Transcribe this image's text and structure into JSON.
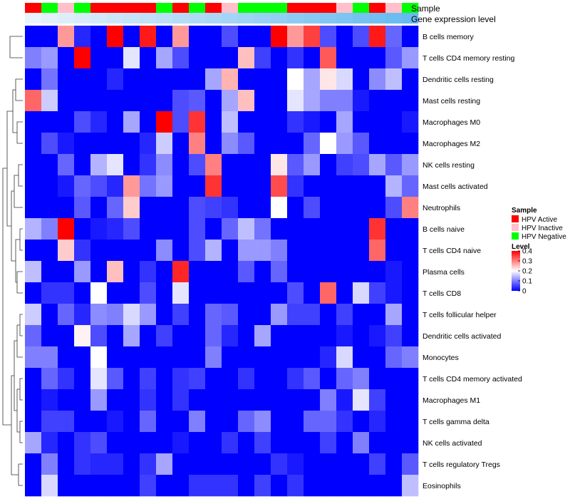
{
  "chart_data": {
    "type": "heatmap",
    "title": "",
    "annotation_labels": {
      "sample": "Sample",
      "gene": "Gene expression level"
    },
    "sample_annotation": [
      "HPV Active",
      "HPV Negative",
      "HPV Inactive",
      "HPV Negative",
      "HPV Active",
      "HPV Active",
      "HPV Active",
      "HPV Active",
      "HPV Negative",
      "HPV Active",
      "HPV Negative",
      "HPV Active",
      "HPV Inactive",
      "HPV Negative",
      "HPV Negative",
      "HPV Negative",
      "HPV Active",
      "HPV Active",
      "HPV Active",
      "HPV Inactive",
      "HPV Negative",
      "HPV Active",
      "HPV Inactive",
      "HPV Negative"
    ],
    "gene_expression_level": [
      0.02,
      0.06,
      0.1,
      0.14,
      0.18,
      0.22,
      0.26,
      0.3,
      0.34,
      0.38,
      0.42,
      0.46,
      0.5,
      0.54,
      0.58,
      0.62,
      0.66,
      0.7,
      0.74,
      0.78,
      0.82,
      0.86,
      0.9,
      0.94
    ],
    "rows": [
      "B cells memory",
      "T cells CD4 memory resting",
      "Dendritic cells resting",
      "Mast cells resting",
      "Macrophages M0",
      "Macrophages M2",
      "NK cells resting",
      "Mast cells activated",
      "Neutrophils",
      "B cells naive",
      "T cells CD4 naive",
      "Plasma cells",
      "T cells CD8",
      "T cells follicular helper",
      "Dendritic cells activated",
      "Monocytes",
      "T cells CD4 memory activated",
      "Macrophages M1",
      "T cells gamma delta",
      "NK cells activated",
      "T cells regulatory  Tregs",
      "Eosinophils"
    ],
    "values": [
      [
        0,
        0,
        0.28,
        0.03,
        0,
        0.4,
        0,
        0.38,
        0,
        0.28,
        0,
        0,
        0.06,
        0,
        0,
        0.4,
        0.28,
        0.35,
        0.06,
        0,
        0.06,
        0.38,
        0.08,
        0
      ],
      [
        0.1,
        0.12,
        0,
        0.4,
        0,
        0,
        0.18,
        0,
        0.13,
        0.06,
        0,
        0,
        0,
        0.25,
        0.05,
        0,
        0.04,
        0,
        0.33,
        0,
        0,
        0,
        0.07,
        0.12
      ],
      [
        0,
        0.09,
        0,
        0,
        0,
        0.03,
        0,
        0,
        0,
        0,
        0,
        0.13,
        0.26,
        0,
        0,
        0,
        0.2,
        0.13,
        0.22,
        0.17,
        0,
        0.11,
        0.15,
        0
      ],
      [
        0.32,
        0.16,
        0,
        0,
        0,
        0,
        0,
        0,
        0,
        0.06,
        0.07,
        0,
        0.13,
        0.25,
        0,
        0,
        0.18,
        0.13,
        0.1,
        0.1,
        0.02,
        0,
        0,
        0
      ],
      [
        0,
        0,
        0,
        0.06,
        0.03,
        0,
        0.13,
        0,
        0.4,
        0.06,
        0.36,
        0,
        0.15,
        0,
        0,
        0,
        0.04,
        0.02,
        0,
        0.13,
        0,
        0,
        0,
        0.02
      ],
      [
        0,
        0.06,
        0.02,
        0,
        0,
        0,
        0,
        0.03,
        0.16,
        0,
        0.3,
        0,
        0.11,
        0.07,
        0,
        0,
        0,
        0.08,
        0.2,
        0.12,
        0.07,
        0,
        0,
        0
      ],
      [
        0,
        0,
        0.08,
        0,
        0.14,
        0.18,
        0,
        0.04,
        0.11,
        0,
        0.06,
        0.3,
        0,
        0,
        0,
        0.22,
        0.07,
        0.12,
        0,
        0.05,
        0.06,
        0.13,
        0.07,
        0.12
      ],
      [
        0,
        0,
        0.02,
        0.08,
        0.06,
        0.03,
        0.28,
        0.09,
        0.12,
        0,
        0,
        0.36,
        0,
        0,
        0,
        0.34,
        0.04,
        0,
        0,
        0,
        0,
        0,
        0.14,
        0.08
      ],
      [
        0,
        0,
        0,
        0.07,
        0,
        0.08,
        0.24,
        0,
        0,
        0,
        0.06,
        0.05,
        0.04,
        0,
        0,
        0.2,
        0,
        0.06,
        0,
        0,
        0,
        0,
        0.06,
        0.3
      ],
      [
        0.14,
        0.1,
        0.4,
        0,
        0.02,
        0.03,
        0.06,
        0,
        0,
        0,
        0.06,
        0,
        0.08,
        0.15,
        0.09,
        0,
        0,
        0,
        0,
        0,
        0,
        0.36,
        0,
        0
      ],
      [
        0,
        0,
        0.24,
        0.04,
        0,
        0,
        0,
        0,
        0.11,
        0,
        0.06,
        0.14,
        0,
        0.12,
        0.12,
        0.1,
        0,
        0,
        0,
        0,
        0,
        0.32,
        0,
        0
      ],
      [
        0.15,
        0,
        0,
        0.12,
        0,
        0.25,
        0,
        0.04,
        0,
        0.37,
        0,
        0,
        0,
        0.07,
        0,
        0.08,
        0,
        0,
        0,
        0,
        0,
        0,
        0.02,
        0
      ],
      [
        0,
        0.04,
        0.04,
        0,
        0.2,
        0,
        0,
        0.06,
        0,
        0.18,
        0,
        0,
        0,
        0,
        0,
        0,
        0.06,
        0,
        0.32,
        0,
        0.17,
        0.05,
        0.02,
        0
      ],
      [
        0.16,
        0,
        0.08,
        0.03,
        0.11,
        0.1,
        0.17,
        0.12,
        0,
        0.05,
        0,
        0.08,
        0.07,
        0,
        0,
        0.12,
        0.05,
        0.05,
        0,
        0.05,
        0,
        0,
        0.13,
        0
      ],
      [
        0.08,
        0,
        0,
        0.21,
        0.06,
        0,
        0.13,
        0,
        0.05,
        0,
        0,
        0.08,
        0.03,
        0,
        0.13,
        0,
        0,
        0,
        0,
        0.02,
        0,
        0.02,
        0.05,
        0
      ],
      [
        0.1,
        0.1,
        0,
        0,
        0.2,
        0,
        0,
        0,
        0,
        0,
        0,
        0.1,
        0,
        0,
        0,
        0,
        0,
        0,
        0.03,
        0.17,
        0,
        0,
        0.08,
        0.1
      ],
      [
        0,
        0.08,
        0.04,
        0,
        0.18,
        0.07,
        0,
        0.05,
        0,
        0.04,
        0.05,
        0,
        0,
        0.04,
        0,
        0,
        0.04,
        0.07,
        0,
        0.08,
        0.1,
        0,
        0,
        0
      ],
      [
        0,
        0.02,
        0,
        0,
        0.12,
        0,
        0,
        0.04,
        0,
        0.04,
        0,
        0,
        0,
        0,
        0,
        0,
        0,
        0,
        0.1,
        0.02,
        0.18,
        0.05,
        0,
        0
      ],
      [
        0,
        0.05,
        0.05,
        0,
        0,
        0.02,
        0,
        0.08,
        0,
        0,
        0.1,
        0,
        0,
        0.08,
        0.11,
        0,
        0,
        0.08,
        0.08,
        0.04,
        0,
        0.03,
        0,
        0
      ],
      [
        0.13,
        0.03,
        0,
        0.04,
        0.06,
        0,
        0,
        0,
        0,
        0.02,
        0,
        0,
        0.04,
        0,
        0.05,
        0,
        0,
        0,
        0.05,
        0,
        0.1,
        0,
        0,
        0
      ],
      [
        0,
        0.1,
        0,
        0.04,
        0.03,
        0.03,
        0,
        0.04,
        0.13,
        0,
        0,
        0,
        0,
        0,
        0,
        0.04,
        0.02,
        0,
        0,
        0,
        0,
        0.05,
        0,
        0.07
      ],
      [
        0,
        0.17,
        0,
        0,
        0,
        0,
        0,
        0.05,
        0,
        0,
        0.04,
        0.04,
        0.04,
        0,
        0.05,
        0,
        0.04,
        0,
        0,
        0,
        0,
        0,
        0,
        0.15
      ]
    ],
    "color_scale": {
      "min": 0,
      "mid": 0.2,
      "max": 0.4,
      "low_color": "#0000ff",
      "mid_color": "#ffffff",
      "high_color": "#ff0000"
    },
    "legend": {
      "sample_title": "Sample",
      "sample_entries": [
        {
          "label": "HPV Active",
          "color": "#ff0000"
        },
        {
          "label": "HPV Inactive",
          "color": "#ffc0cb"
        },
        {
          "label": "HPV Negative",
          "color": "#00ff00"
        }
      ],
      "level_title": "Level",
      "level_ticks": [
        0.4,
        0.3,
        0.2,
        0.1,
        0
      ],
      "level_tick_labels": [
        "0.4",
        "0.3",
        "0.2",
        "0.1",
        "0"
      ],
      "placement": "right"
    },
    "gene_colors": {
      "low": "#ebf4fb",
      "high": "#5db6f0"
    }
  }
}
